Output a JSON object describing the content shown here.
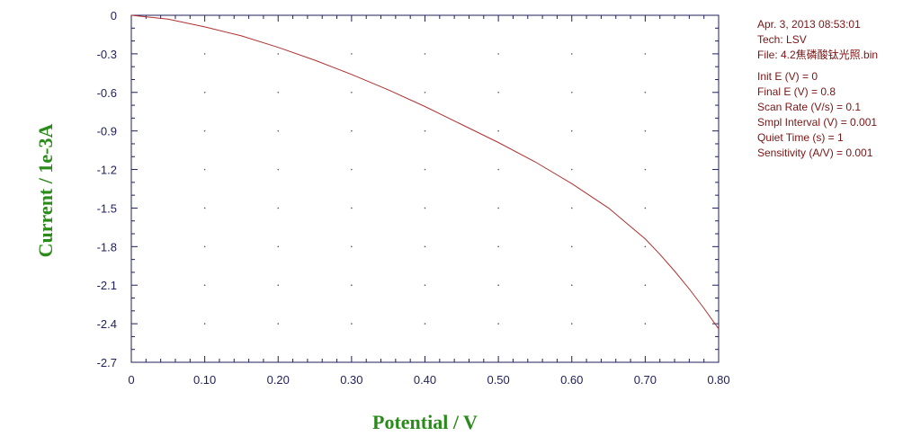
{
  "info": {
    "date": "Apr. 3, 2013   08:53:01",
    "tech": "Tech: LSV",
    "file": "File: 4.2焦磷酸钛光照.bin",
    "init_e": "Init E (V) = 0",
    "final_e": "Final E (V) = 0.8",
    "scan_rate": "Scan Rate (V/s) = 0.1",
    "smpl_interval": "Smpl Interval (V) = 0.001",
    "quiet_time": "Quiet Time (s) = 1",
    "sensitivity": "Sensitivity (A/V) = 0.001"
  },
  "chart_data": {
    "type": "line",
    "xlabel": "Potential / V",
    "ylabel": "Current / 1e-3A",
    "xlim": [
      0,
      0.8
    ],
    "ylim": [
      -2.7,
      0
    ],
    "xticks": [
      "0",
      "0.10",
      "0.20",
      "0.30",
      "0.40",
      "0.50",
      "0.60",
      "0.70",
      "0.80"
    ],
    "yticks": [
      "0",
      "-0.3",
      "-0.6",
      "-0.9",
      "-1.2",
      "-1.5",
      "-1.8",
      "-2.1",
      "-2.4",
      "-2.7"
    ],
    "grid": "dotted",
    "line_color": "#b03030",
    "series": [
      {
        "x": [
          0,
          0.05,
          0.1,
          0.15,
          0.2,
          0.25,
          0.3,
          0.35,
          0.4,
          0.45,
          0.5,
          0.55,
          0.6,
          0.65,
          0.7,
          0.72,
          0.74,
          0.76,
          0.78,
          0.8
        ],
        "y": [
          0,
          -0.03,
          -0.09,
          -0.16,
          -0.25,
          -0.35,
          -0.46,
          -0.58,
          -0.71,
          -0.85,
          -0.99,
          -1.14,
          -1.31,
          -1.5,
          -1.74,
          -1.86,
          -1.99,
          -2.13,
          -2.28,
          -2.44
        ]
      }
    ]
  }
}
